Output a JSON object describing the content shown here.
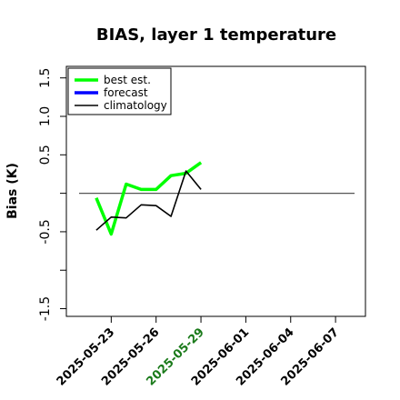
{
  "chart_data": {
    "type": "line",
    "title": "BIAS, layer 1 temperature",
    "xlabel": "",
    "ylabel": "Bias (K)",
    "x_range": [
      "2025-05-20",
      "2025-06-09"
    ],
    "ylim": [
      -1.6,
      1.65
    ],
    "yticks": [
      -1.5,
      -1.0,
      -0.5,
      0.0,
      0.5,
      1.0,
      1.5
    ],
    "ytick_labels": [
      "-1.5",
      "",
      "-0.5",
      "",
      "0.5",
      "1.0",
      "1.5"
    ],
    "xticks": [
      "2025-05-23",
      "2025-05-26",
      "2025-05-29",
      "2025-06-01",
      "2025-06-04",
      "2025-06-07"
    ],
    "highlight_tick": "2025-05-29",
    "highlight_color": "#1a7a1a",
    "reference_line": 0.0,
    "grid": false,
    "legend_position": "top-left",
    "series": [
      {
        "name": "best est.",
        "color": "#00ff00",
        "x": [
          "2025-05-22",
          "2025-05-23",
          "2025-05-24",
          "2025-05-25",
          "2025-05-26",
          "2025-05-27",
          "2025-05-28",
          "2025-05-29"
        ],
        "values": [
          -0.06,
          -0.53,
          0.12,
          0.05,
          0.05,
          0.23,
          0.26,
          0.4
        ]
      },
      {
        "name": "forecast",
        "color": "#0000ff",
        "x": [],
        "values": []
      },
      {
        "name": "climatology",
        "color": "#000000",
        "x": [
          "2025-05-22",
          "2025-05-23",
          "2025-05-24",
          "2025-05-25",
          "2025-05-26",
          "2025-05-27",
          "2025-05-28",
          "2025-05-29"
        ],
        "values": [
          -0.48,
          -0.31,
          -0.32,
          -0.15,
          -0.16,
          -0.3,
          0.29,
          0.05
        ]
      }
    ]
  }
}
